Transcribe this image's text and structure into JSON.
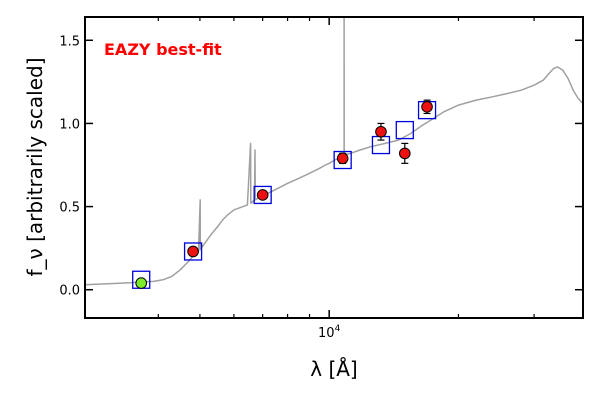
{
  "chart_data": {
    "type": "scatter",
    "annotation": "EAZY best-fit",
    "annotation_color": "#ff0000",
    "ylabel": "f_ν [arbitrarily scaled]",
    "xlabel": "λ [Å]",
    "xscale": "log",
    "xlim": [
      2700,
      39000
    ],
    "ylim": [
      -0.17,
      1.64
    ],
    "yticks": [
      0.0,
      0.5,
      1.0,
      1.5
    ],
    "ytick_labels": [
      "0.0",
      "0.5",
      "1.0",
      "1.5"
    ],
    "xtick_major": [
      {
        "value": 10000,
        "label_base": "10",
        "label_exp": "4"
      }
    ],
    "xtick_minor": [
      4000,
      5000,
      6000,
      7000,
      8000,
      9000,
      20000,
      30000
    ],
    "grid": false,
    "colors": {
      "model": "#a0a0a0",
      "model_flux_marker": "#0000dd",
      "observed_marker": "#ee1111",
      "observed_marker_first": "#7dea2b",
      "error_bar": "#000000"
    },
    "model_spectrum": [
      [
        2700,
        0.03
      ],
      [
        3000,
        0.035
      ],
      [
        3300,
        0.04
      ],
      [
        3600,
        0.045
      ],
      [
        3900,
        0.05
      ],
      [
        4100,
        0.06
      ],
      [
        4300,
        0.08
      ],
      [
        4500,
        0.12
      ],
      [
        4700,
        0.17
      ],
      [
        4850,
        0.21
      ],
      [
        4950,
        0.22
      ],
      [
        4959,
        0.24
      ],
      [
        4961,
        0.23
      ],
      [
        5007,
        0.54
      ],
      [
        5010,
        0.24
      ],
      [
        5100,
        0.27
      ],
      [
        5300,
        0.33
      ],
      [
        5500,
        0.38
      ],
      [
        5650,
        0.42
      ],
      [
        5800,
        0.45
      ],
      [
        6000,
        0.48
      ],
      [
        6300,
        0.5
      ],
      [
        6450,
        0.51
      ],
      [
        6563,
        0.88
      ],
      [
        6570,
        0.52
      ],
      [
        6700,
        0.54
      ],
      [
        6717,
        0.84
      ],
      [
        6730,
        0.54
      ],
      [
        6900,
        0.56
      ],
      [
        7200,
        0.58
      ],
      [
        7600,
        0.61
      ],
      [
        8000,
        0.64
      ],
      [
        8500,
        0.67
      ],
      [
        9000,
        0.7
      ],
      [
        9500,
        0.73
      ],
      [
        9800,
        0.75
      ],
      [
        10000,
        0.76
      ],
      [
        10300,
        0.78
      ],
      [
        10500,
        0.79
      ],
      [
        10830,
        0.81
      ],
      [
        10835,
        1.64
      ],
      [
        10840,
        0.81
      ],
      [
        11200,
        0.82
      ],
      [
        11800,
        0.84
      ],
      [
        12500,
        0.86
      ],
      [
        13500,
        0.88
      ],
      [
        14500,
        0.9
      ],
      [
        15500,
        0.94
      ],
      [
        16500,
        0.99
      ],
      [
        17500,
        1.03
      ],
      [
        18500,
        1.07
      ],
      [
        20000,
        1.11
      ],
      [
        22000,
        1.14
      ],
      [
        24000,
        1.16
      ],
      [
        26000,
        1.18
      ],
      [
        28000,
        1.2
      ],
      [
        30000,
        1.23
      ],
      [
        31500,
        1.26
      ],
      [
        32500,
        1.3
      ],
      [
        33300,
        1.33
      ],
      [
        34000,
        1.34
      ],
      [
        35000,
        1.32
      ],
      [
        36000,
        1.27
      ],
      [
        37000,
        1.2
      ],
      [
        38000,
        1.15
      ],
      [
        39000,
        1.12
      ]
    ],
    "model_fluxes": [
      {
        "x": 3650,
        "y": 0.06
      },
      {
        "x": 4820,
        "y": 0.23
      },
      {
        "x": 7000,
        "y": 0.57
      },
      {
        "x": 10750,
        "y": 0.78
      },
      {
        "x": 13200,
        "y": 0.87
      },
      {
        "x": 15000,
        "y": 0.96
      },
      {
        "x": 16900,
        "y": 1.08
      }
    ],
    "observed": [
      {
        "x": 3650,
        "y": 0.04,
        "err": 0.02
      },
      {
        "x": 4820,
        "y": 0.23,
        "err": 0.02
      },
      {
        "x": 7000,
        "y": 0.57,
        "err": 0.02
      },
      {
        "x": 10750,
        "y": 0.79,
        "err": 0.03
      },
      {
        "x": 13200,
        "y": 0.95,
        "err": 0.05
      },
      {
        "x": 15000,
        "y": 0.82,
        "err": 0.06
      },
      {
        "x": 16900,
        "y": 1.1,
        "err": 0.04
      }
    ]
  }
}
